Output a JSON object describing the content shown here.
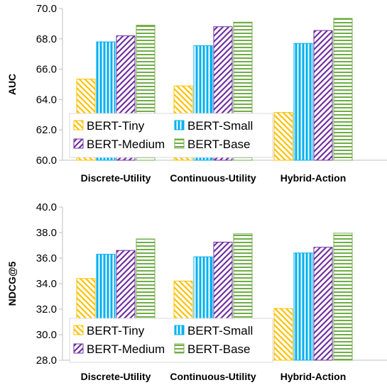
{
  "colors": {
    "BERT-Tiny": "#ffc000",
    "BERT-Small": "#00b0f0",
    "BERT-Medium": "#7030a0",
    "BERT-Base": "#70ad47"
  },
  "chart_data": [
    {
      "type": "bar",
      "ylabel": "AUC",
      "ylim": [
        60.0,
        70.0
      ],
      "yticks": [
        "60.0",
        "62.0",
        "64.0",
        "66.0",
        "68.0",
        "70.0"
      ],
      "categories": [
        "Discrete-Utility",
        "Continuous-Utility",
        "Hybrid-Action"
      ],
      "series": [
        {
          "name": "BERT-Tiny",
          "pattern": "diagonal-left",
          "values": [
            65.35,
            64.9,
            63.15
          ]
        },
        {
          "name": "BERT-Small",
          "pattern": "vertical",
          "values": [
            67.8,
            67.55,
            67.7
          ]
        },
        {
          "name": "BERT-Medium",
          "pattern": "diagonal-right",
          "values": [
            68.2,
            68.8,
            68.55
          ]
        },
        {
          "name": "BERT-Base",
          "pattern": "horizontal",
          "values": [
            68.9,
            69.1,
            69.35
          ]
        }
      ],
      "legend": {
        "position": "bottom-left",
        "columns": 2
      },
      "grid": false
    },
    {
      "type": "bar",
      "ylabel": "NDCG@5",
      "ylim": [
        28.0,
        40.0
      ],
      "yticks": [
        "28.0",
        "30.0",
        "32.0",
        "34.0",
        "36.0",
        "38.0",
        "40.0"
      ],
      "categories": [
        "Discrete-Utility",
        "Continuous-Utility",
        "Hybrid-Action"
      ],
      "series": [
        {
          "name": "BERT-Tiny",
          "pattern": "diagonal-left",
          "values": [
            34.4,
            34.2,
            32.05
          ]
        },
        {
          "name": "BERT-Small",
          "pattern": "vertical",
          "values": [
            36.3,
            36.1,
            36.4
          ]
        },
        {
          "name": "BERT-Medium",
          "pattern": "diagonal-right",
          "values": [
            36.6,
            37.25,
            36.85
          ]
        },
        {
          "name": "BERT-Base",
          "pattern": "horizontal",
          "values": [
            37.5,
            37.9,
            37.95
          ]
        }
      ],
      "legend": {
        "position": "bottom-left",
        "columns": 2
      },
      "grid": false
    }
  ]
}
